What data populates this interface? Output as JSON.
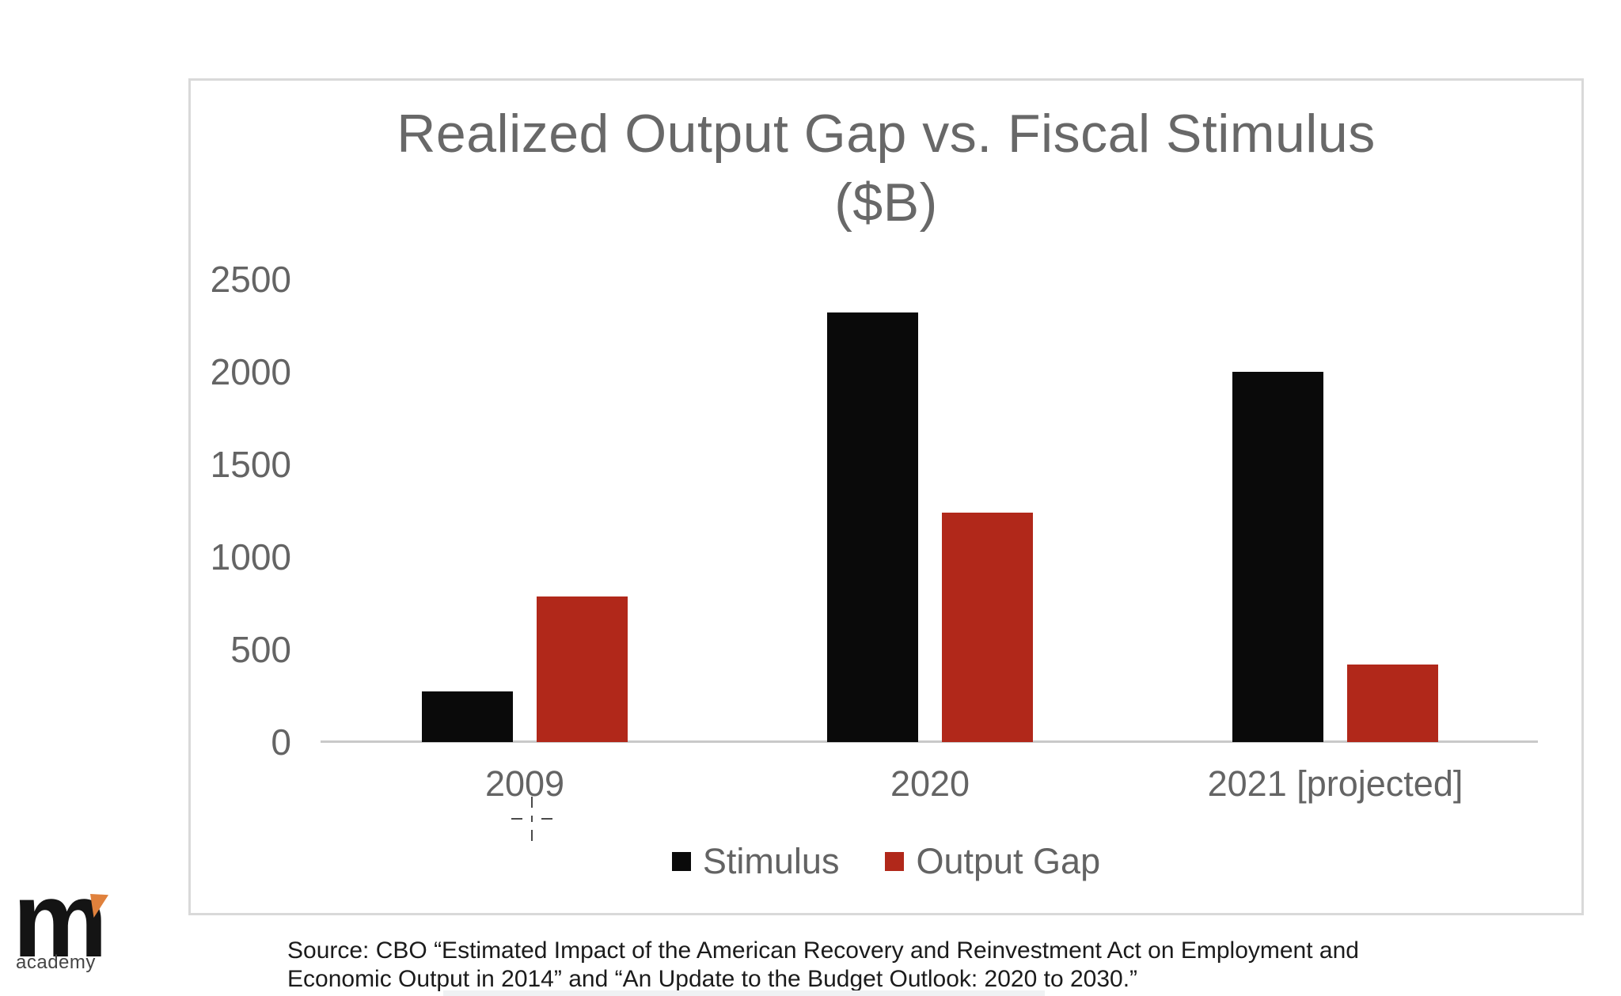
{
  "chart_data": {
    "type": "bar",
    "title_line1": "Realized Output Gap vs. Fiscal Stimulus",
    "title_line2": "($B)",
    "categories": [
      "2009",
      "2020",
      "2021 [projected]"
    ],
    "series": [
      {
        "name": "Stimulus",
        "color": "#0a0a0a",
        "values": [
          275,
          2320,
          2000
        ]
      },
      {
        "name": "Output Gap",
        "color": "#b1281a",
        "values": [
          785,
          1240,
          420
        ]
      }
    ],
    "y_ticks": [
      0,
      500,
      1000,
      1500,
      2000,
      2500
    ],
    "ylim": [
      0,
      2500
    ],
    "xlabel": "",
    "ylabel": "",
    "grid": false,
    "legend_position": "bottom",
    "axis_text_color": "#646464",
    "axis_line_color": "#c9c9c9"
  },
  "logo": {
    "m": "m",
    "academy": "academy",
    "accent_color": "#e0813c"
  },
  "source": {
    "line1": "Source: CBO “Estimated Impact of the American Recovery and Reinvestment Act on Employment and",
    "line2": "Economic Output in 2014” and “An Update to the Budget Outlook: 2020 to 2030.”"
  }
}
